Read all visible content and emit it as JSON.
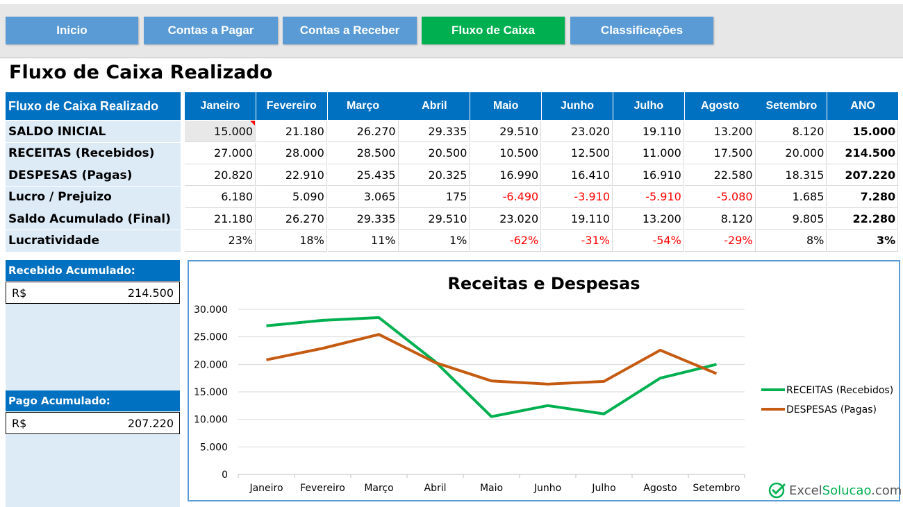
{
  "nav": {
    "items": [
      {
        "label": "Inicio"
      },
      {
        "label": "Contas a Pagar"
      },
      {
        "label": "Contas a Receber"
      },
      {
        "label": "Fluxo de Caixa"
      },
      {
        "label": "Classificações"
      }
    ],
    "active_index": 3,
    "active_color": "#00b050",
    "color": "#5b9bd5"
  },
  "page_title": "Fluxo de Caixa Realizado",
  "table": {
    "corner_label": "Fluxo de Caixa Realizado",
    "columns": [
      "Janeiro",
      "Fevereiro",
      "Março",
      "Abril",
      "Maio",
      "Junho",
      "Julho",
      "Agosto",
      "Setembro",
      "ANO"
    ],
    "rows": [
      {
        "label": "SALDO INICIAL",
        "values": [
          "15.000",
          "21.180",
          "26.270",
          "29.335",
          "29.510",
          "23.020",
          "19.110",
          "13.200",
          "8.120",
          "15.000"
        ]
      },
      {
        "label": "RECEITAS (Recebidos)",
        "values": [
          "27.000",
          "28.000",
          "28.500",
          "20.500",
          "10.500",
          "12.500",
          "11.000",
          "17.500",
          "20.000",
          "214.500"
        ]
      },
      {
        "label": "DESPESAS (Pagas)",
        "values": [
          "20.820",
          "22.910",
          "25.435",
          "20.325",
          "16.990",
          "16.410",
          "16.910",
          "22.580",
          "18.315",
          "207.220"
        ]
      },
      {
        "label": "Lucro / Prejuizo",
        "values": [
          "6.180",
          "5.090",
          "3.065",
          "175",
          "-6.490",
          "-3.910",
          "-5.910",
          "-5.080",
          "1.685",
          "7.280"
        ]
      },
      {
        "label": "Saldo Acumulado (Final)",
        "values": [
          "21.180",
          "26.270",
          "29.335",
          "29.510",
          "23.020",
          "19.110",
          "13.200",
          "8.120",
          "9.805",
          "22.280"
        ]
      },
      {
        "label": "Lucratividade",
        "values": [
          "23%",
          "18%",
          "11%",
          "1%",
          "-62%",
          "-31%",
          "-54%",
          "-29%",
          "8%",
          "3%"
        ]
      }
    ],
    "header_color": "#0070c0",
    "label_bg": "#ddebf7",
    "negative_color": "#ff0000"
  },
  "summary": {
    "received": {
      "title": "Recebido Acumulado:",
      "currency": "R$",
      "value": "214.500"
    },
    "paid": {
      "title": "Pago Acumulado:",
      "currency": "R$",
      "value": "207.220"
    }
  },
  "chart_data": {
    "type": "line",
    "title": "Receitas e Despesas",
    "categories": [
      "Janeiro",
      "Fevereiro",
      "Março",
      "Abril",
      "Maio",
      "Junho",
      "Julho",
      "Agosto",
      "Setembro"
    ],
    "series": [
      {
        "name": "RECEITAS (Recebidos)",
        "color": "#00b050",
        "values": [
          27000,
          28000,
          28500,
          20500,
          10500,
          12500,
          11000,
          17500,
          20000
        ]
      },
      {
        "name": "DESPESAS (Pagas)",
        "color": "#c55a11",
        "values": [
          20820,
          22910,
          25435,
          20325,
          16990,
          16410,
          16910,
          22580,
          18315
        ]
      }
    ],
    "ylim": [
      0,
      30000
    ],
    "y_ticks": [
      "0",
      "5.000",
      "10.000",
      "15.000",
      "20.000",
      "25.000",
      "30.000"
    ],
    "grid": true,
    "legend": "right"
  },
  "brand": {
    "prefix": "Excel",
    "accent": "Solucao",
    "suffix": ".com.br"
  }
}
